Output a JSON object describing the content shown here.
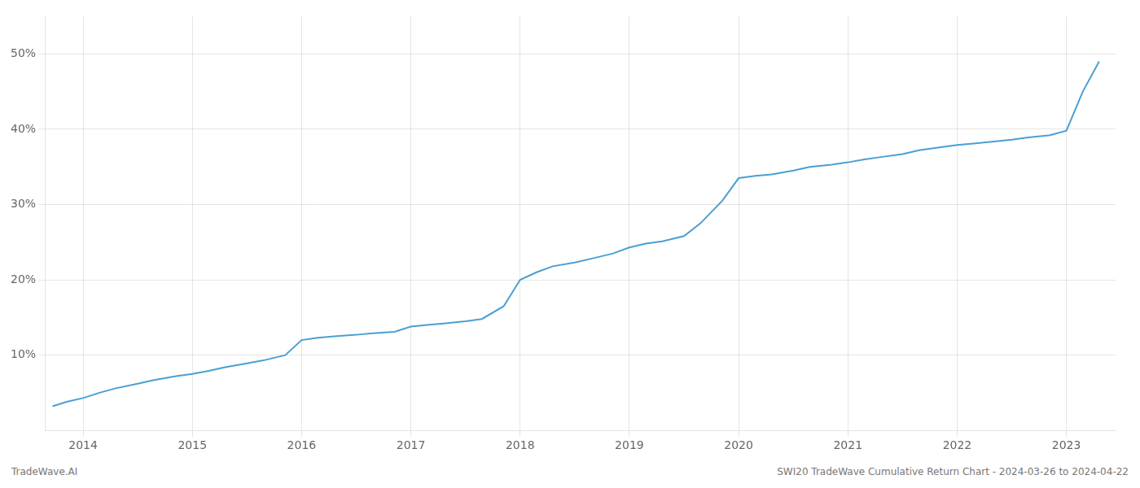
{
  "chart_data": {
    "type": "line",
    "x": [
      2013.72,
      2013.85,
      2014.0,
      2014.15,
      2014.3,
      2014.5,
      2014.65,
      2014.85,
      2015.0,
      2015.15,
      2015.3,
      2015.5,
      2015.65,
      2015.85,
      2016.0,
      2016.15,
      2016.3,
      2016.5,
      2016.65,
      2016.85,
      2017.0,
      2017.15,
      2017.3,
      2017.5,
      2017.65,
      2017.85,
      2018.0,
      2018.15,
      2018.3,
      2018.5,
      2018.65,
      2018.85,
      2019.0,
      2019.15,
      2019.3,
      2019.5,
      2019.65,
      2019.85,
      2020.0,
      2020.15,
      2020.3,
      2020.5,
      2020.65,
      2020.85,
      2021.0,
      2021.15,
      2021.3,
      2021.5,
      2021.65,
      2021.85,
      2022.0,
      2022.15,
      2022.3,
      2022.5,
      2022.65,
      2022.85,
      2023.0,
      2023.15,
      2023.3
    ],
    "values": [
      3.2,
      3.8,
      4.3,
      5.0,
      5.6,
      6.2,
      6.7,
      7.2,
      7.5,
      7.9,
      8.4,
      8.9,
      9.3,
      10.0,
      12.0,
      12.3,
      12.5,
      12.7,
      12.9,
      13.1,
      13.8,
      14.0,
      14.2,
      14.5,
      14.8,
      16.5,
      20.0,
      21.0,
      21.8,
      22.3,
      22.8,
      23.5,
      24.3,
      24.8,
      25.1,
      25.8,
      27.5,
      30.5,
      33.5,
      33.8,
      34.0,
      34.5,
      35.0,
      35.3,
      35.6,
      36.0,
      36.3,
      36.7,
      37.2,
      37.6,
      37.9,
      38.1,
      38.3,
      38.6,
      38.9,
      39.2,
      39.8,
      45.0,
      49.0
    ],
    "color": "#4a9fd4",
    "xlim": [
      2013.65,
      2023.45
    ],
    "ylim": [
      0,
      55
    ],
    "xticks": [
      2014,
      2015,
      2016,
      2017,
      2018,
      2019,
      2020,
      2021,
      2022,
      2023
    ],
    "yticks": [
      {
        "value": 10,
        "label": "10%"
      },
      {
        "value": 20,
        "label": "20%"
      },
      {
        "value": 30,
        "label": "30%"
      },
      {
        "value": 40,
        "label": "40%"
      },
      {
        "value": 50,
        "label": "50%"
      }
    ],
    "grid": true,
    "annotations": [
      "TradeWave.AI",
      "SWI20 TradeWave Cumulative Return Chart - 2024-03-26 to 2024-04-22"
    ]
  }
}
